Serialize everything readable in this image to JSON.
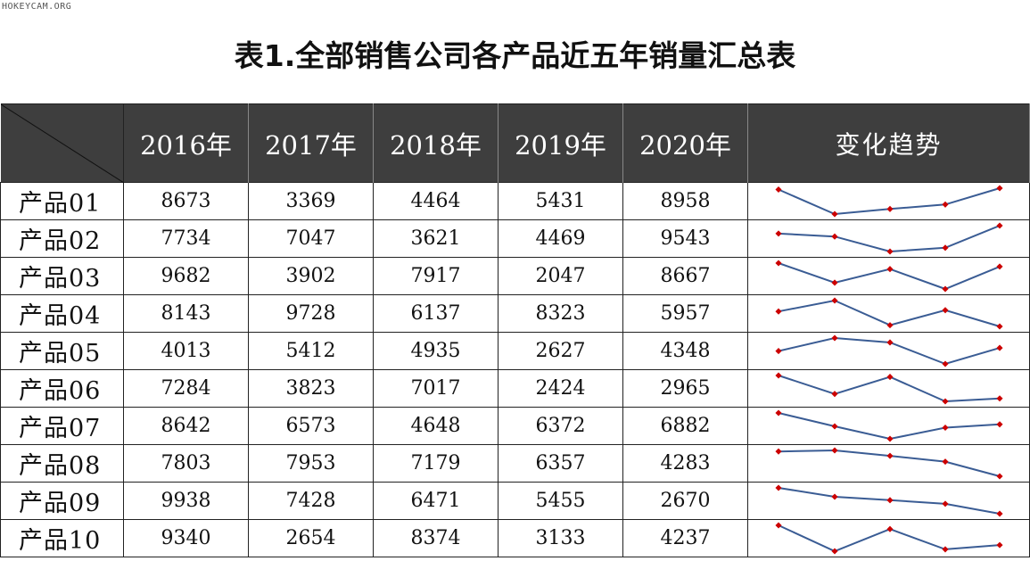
{
  "watermark": "HOKEYCAM.ORG",
  "title": "表1.全部销售公司各产品近五年销量汇总表",
  "header": {
    "years": [
      "2016年",
      "2017年",
      "2018年",
      "2019年",
      "2020年"
    ],
    "trend": "变化趋势"
  },
  "colors": {
    "header_bg": "#3e3e3e",
    "line": "#3a5c94",
    "marker": "#cc0000"
  },
  "rows": [
    {
      "name": "产品01",
      "values": [
        "8673",
        "3369",
        "4464",
        "5431",
        "8958"
      ]
    },
    {
      "name": "产品02",
      "values": [
        "7734",
        "7047",
        "3621",
        "4469",
        "9543"
      ]
    },
    {
      "name": "产品03",
      "values": [
        "9682",
        "3902",
        "7917",
        "2047",
        "8667"
      ]
    },
    {
      "name": "产品04",
      "values": [
        "8143",
        "9728",
        "6137",
        "8323",
        "5957"
      ]
    },
    {
      "name": "产品05",
      "values": [
        "4013",
        "5412",
        "4935",
        "2627",
        "4348"
      ]
    },
    {
      "name": "产品06",
      "values": [
        "7284",
        "3823",
        "7017",
        "2424",
        "2965"
      ]
    },
    {
      "name": "产品07",
      "values": [
        "8642",
        "6573",
        "4648",
        "6372",
        "6882"
      ]
    },
    {
      "name": "产品08",
      "values": [
        "7803",
        "7953",
        "7179",
        "6357",
        "4283"
      ]
    },
    {
      "name": "产品09",
      "values": [
        "9938",
        "7428",
        "6471",
        "5455",
        "2670"
      ]
    },
    {
      "name": "产品10",
      "values": [
        "9340",
        "2654",
        "8374",
        "3133",
        "4237"
      ]
    }
  ]
}
